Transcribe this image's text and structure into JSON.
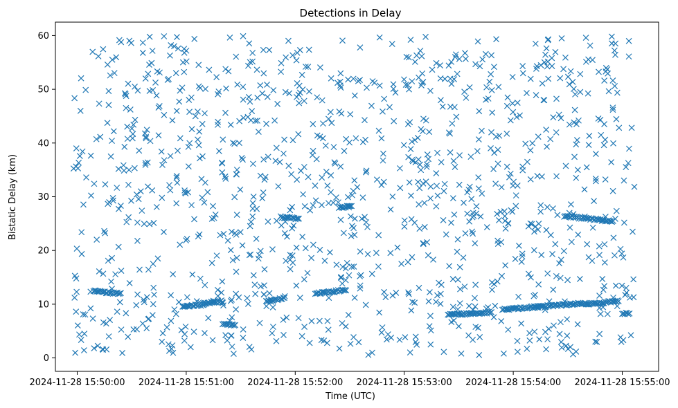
{
  "chart_data": {
    "type": "scatter",
    "title": "Detections in Delay",
    "xlabel": "Time (UTC)",
    "ylabel": "Bistatic Delay (km)",
    "marker": "x",
    "color": "#1f77b4",
    "x_unit": "UTC time",
    "xlim": [
      "2024-11-28 15:49:48",
      "2024-11-28 15:55:20"
    ],
    "ylim": [
      -2.5,
      62.5
    ],
    "xticks": [
      "2024-11-28 15:50:00",
      "2024-11-28 15:51:00",
      "2024-11-28 15:52:00",
      "2024-11-28 15:53:00",
      "2024-11-28 15:54:00",
      "2024-11-28 15:55:00"
    ],
    "yticks": [
      0,
      10,
      20,
      30,
      40,
      50,
      60
    ],
    "grid": false,
    "tracks": [
      {
        "x_start": "2024-11-28 15:50:09",
        "x_end": "2024-11-28 15:50:24",
        "y_start": 12.4,
        "y_end": 12.0
      },
      {
        "x_start": "2024-11-28 15:50:58",
        "x_end": "2024-11-28 15:51:10",
        "y_start": 9.6,
        "y_end": 9.9
      },
      {
        "x_start": "2024-11-28 15:51:08",
        "x_end": "2024-11-28 15:51:20",
        "y_start": 10.1,
        "y_end": 10.6
      },
      {
        "x_start": "2024-11-28 15:51:20",
        "x_end": "2024-11-28 15:51:27",
        "y_start": 6.3,
        "y_end": 6.0
      },
      {
        "x_start": "2024-11-28 15:51:44",
        "x_end": "2024-11-28 15:51:54",
        "y_start": 10.6,
        "y_end": 11.1
      },
      {
        "x_start": "2024-11-28 15:51:52",
        "x_end": "2024-11-28 15:52:02",
        "y_start": 26.2,
        "y_end": 25.9
      },
      {
        "x_start": "2024-11-28 15:52:11",
        "x_end": "2024-11-28 15:52:28",
        "y_start": 12.0,
        "y_end": 12.6
      },
      {
        "x_start": "2024-11-28 15:52:24",
        "x_end": "2024-11-28 15:52:31",
        "y_start": 28.0,
        "y_end": 28.2
      },
      {
        "x_start": "2024-11-28 15:53:24",
        "x_end": "2024-11-28 15:53:48",
        "y_start": 8.0,
        "y_end": 8.5
      },
      {
        "x_start": "2024-11-28 15:53:54",
        "x_end": "2024-11-28 15:54:40",
        "y_start": 9.0,
        "y_end": 10.2
      },
      {
        "x_start": "2024-11-28 15:54:28",
        "x_end": "2024-11-28 15:54:55",
        "y_start": 26.4,
        "y_end": 25.4
      },
      {
        "x_start": "2024-11-28 15:54:40",
        "x_end": "2024-11-28 15:54:58",
        "y_start": 10.0,
        "y_end": 10.6
      },
      {
        "x_start": "2024-11-28 15:55:00",
        "x_end": "2024-11-28 15:55:04",
        "y_start": 8.2,
        "y_end": 8.3
      }
    ],
    "clutter_count": 1150,
    "clutter_y_range": [
      0.5,
      60
    ]
  }
}
